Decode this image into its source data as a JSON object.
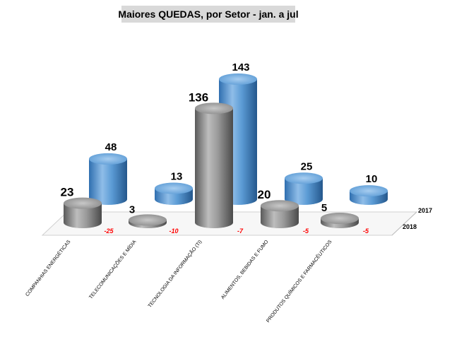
{
  "chart_data": {
    "type": "bar",
    "title": "Maiores QUEDAS, por Setor -  jan. a jul",
    "categories": [
      "COMPANHIAS ENERGÉTICAS",
      "TELECOMUNICAÇÕES E MÍDIA",
      "TECNOLOGIA DA INFORMAÇÃO (TI)",
      "ALIMENTOS, BEBIDAS E FUMO",
      "PRODUTOS QUÍMICOS E FARMACÊUTICOS"
    ],
    "series": [
      {
        "name": "2018",
        "values": [
          23,
          3,
          136,
          20,
          5
        ],
        "color": "#8c8c8c"
      },
      {
        "name": "2017",
        "values": [
          48,
          13,
          143,
          25,
          10
        ],
        "color": "#5b9bd5"
      }
    ],
    "differences": [
      "-25",
      "-10",
      "-7",
      "-5",
      "-5"
    ],
    "difference_color": "#ff0000",
    "ylim": [
      0,
      143
    ]
  }
}
